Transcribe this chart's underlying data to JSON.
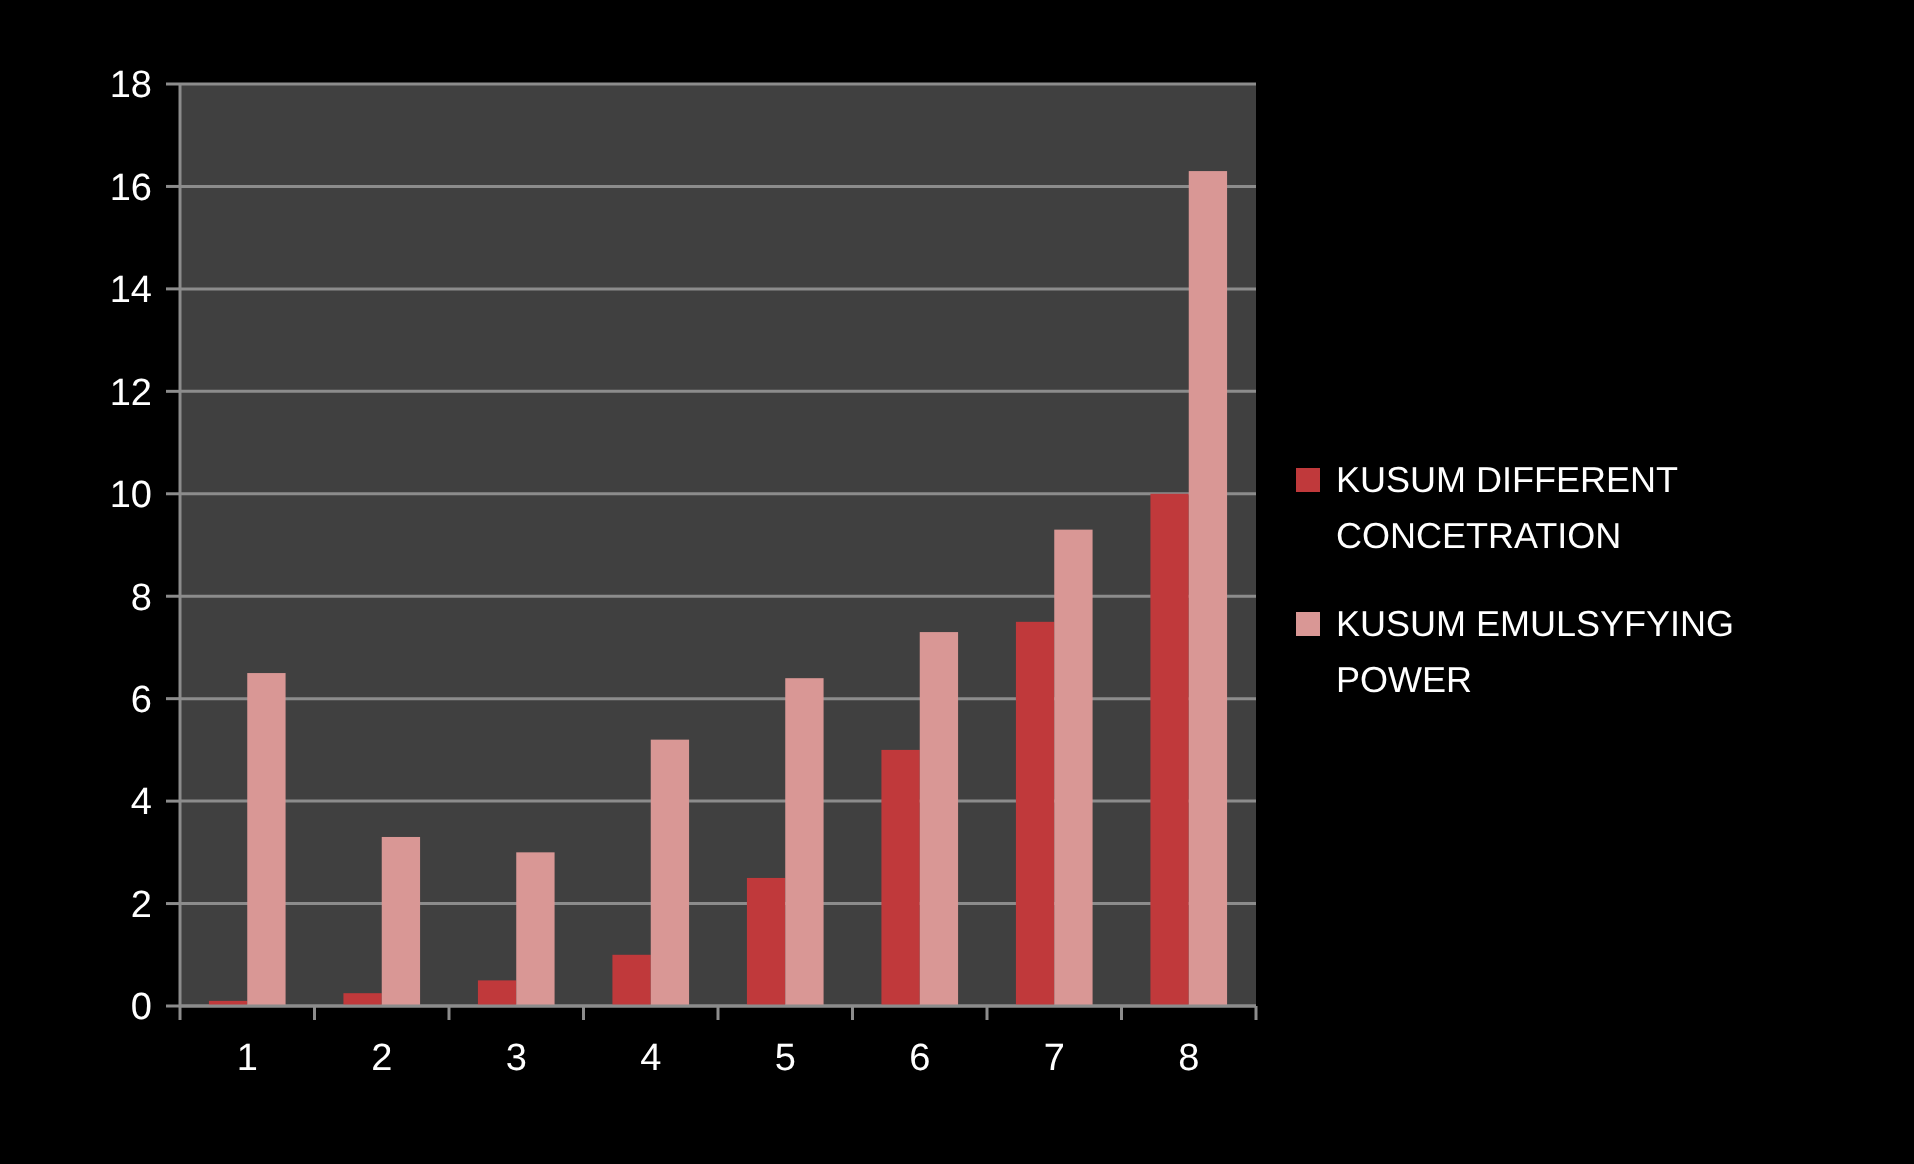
{
  "chart_data": {
    "type": "bar",
    "categories": [
      "1",
      "2",
      "3",
      "4",
      "5",
      "6",
      "7",
      "8"
    ],
    "series": [
      {
        "name": "KUSUM DIFFERENT CONCETRATION",
        "color": "#c0393b",
        "values": [
          0.1,
          0.25,
          0.5,
          1,
          2.5,
          5,
          7.5,
          10
        ]
      },
      {
        "name": "KUSUM EMULSYFYING POWER",
        "color": "#d99795",
        "values": [
          6.5,
          3.3,
          3,
          5.2,
          6.4,
          7.3,
          9.3,
          16.3
        ]
      }
    ],
    "ylim": [
      0,
      18
    ],
    "yticks": [
      0,
      2,
      4,
      6,
      8,
      10,
      12,
      14,
      16,
      18
    ],
    "grid": "y",
    "legend": "right"
  }
}
